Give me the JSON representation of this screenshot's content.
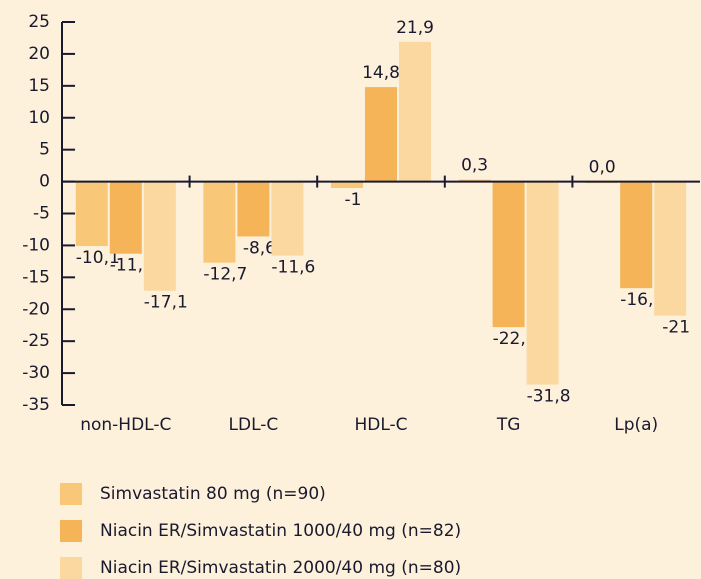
{
  "chart_data": {
    "type": "bar",
    "categories": [
      "non-HDL-C",
      "LDL-C",
      "HDL-C",
      "TG",
      "Lp(a)"
    ],
    "series": [
      {
        "name": "Simvastatin 80 mg (n=90)",
        "color": "#f8c878",
        "values": [
          -10.1,
          -12.7,
          -1,
          0.3,
          0.0
        ],
        "value_labels": [
          "-10,1",
          "-12,7",
          "-1",
          "0,3",
          "0,0"
        ]
      },
      {
        "name": "Niacin ER/Simvastatin 1000/40 mg (n=82)",
        "color": "#f5b458",
        "values": [
          -11.3,
          -8.6,
          14.8,
          -22.8,
          -16.7
        ],
        "value_labels": [
          "-11,3",
          "-8,6",
          "14,8",
          "-22,8",
          "-16,7"
        ]
      },
      {
        "name": "Niacin ER/Simvastatin 2000/40 mg (n=80)",
        "color": "#fad8a0",
        "values": [
          -17.1,
          -11.6,
          21.9,
          -31.8,
          -21
        ],
        "value_labels": [
          "-17,1",
          "-11,6",
          "21,9",
          "-31,8",
          "-21"
        ]
      }
    ],
    "ylim": [
      -35,
      25
    ],
    "yticks": [
      -35,
      -30,
      -25,
      -20,
      -15,
      -10,
      -5,
      0,
      5,
      10,
      15,
      20,
      25
    ]
  }
}
